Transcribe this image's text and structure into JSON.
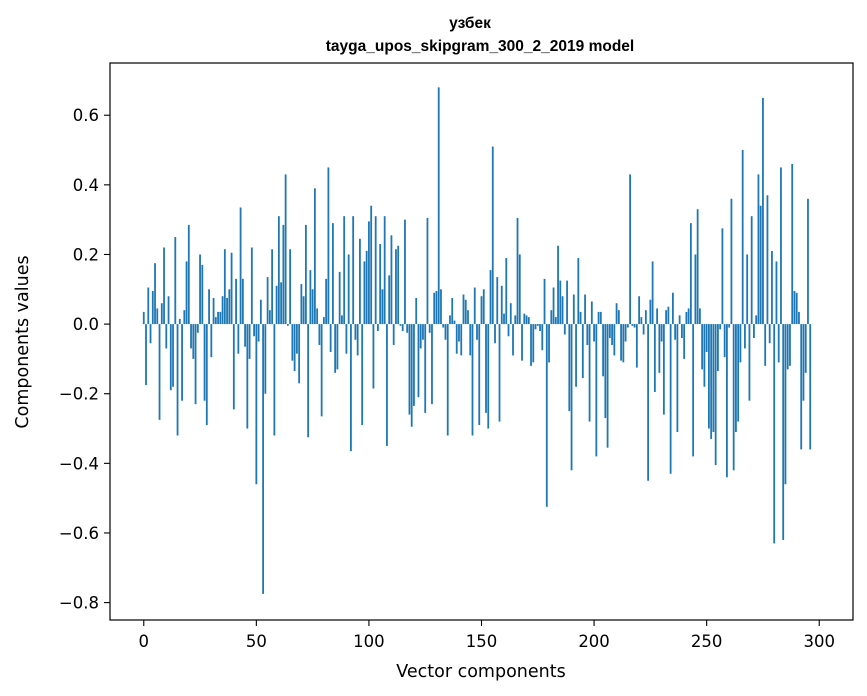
{
  "chart_data": {
    "type": "bar",
    "title": "узбек",
    "subtitle": "tayga_upos_skipgram_300_2_2019 model",
    "xlabel": "Vector components",
    "ylabel": "Components values",
    "xlim": [
      -15,
      315
    ],
    "ylim": [
      -0.85,
      0.75
    ],
    "xticks": [
      0,
      50,
      100,
      150,
      200,
      250,
      300
    ],
    "yticks": [
      -0.8,
      -0.6,
      -0.4,
      -0.2,
      0.0,
      0.2,
      0.4,
      0.6
    ],
    "ytick_labels": [
      "−0.8",
      "−0.6",
      "−0.4",
      "−0.2",
      "0.0",
      "0.2",
      "0.4",
      "0.6"
    ],
    "bar_color": "#1f77b4",
    "grid": false,
    "values": [
      0.035,
      -0.175,
      0.105,
      -0.055,
      0.095,
      0.175,
      0.045,
      -0.275,
      0.06,
      0.22,
      -0.07,
      0.08,
      -0.19,
      -0.18,
      0.25,
      -0.32,
      0.015,
      -0.22,
      0.04,
      0.18,
      0.285,
      -0.07,
      -0.1,
      -0.23,
      -0.025,
      0.2,
      0.17,
      -0.22,
      -0.29,
      0.1,
      -0.095,
      0.075,
      0.02,
      0.035,
      0.035,
      0.08,
      0.215,
      0.075,
      0.1,
      0.205,
      -0.245,
      0.13,
      -0.085,
      0.335,
      0.13,
      -0.065,
      -0.3,
      -0.1,
      0.22,
      -0.035,
      -0.46,
      -0.05,
      0.07,
      -0.775,
      -0.2,
      0.135,
      0.04,
      0.215,
      -0.32,
      0.11,
      0.31,
      0.12,
      0.285,
      0.43,
      -0.005,
      0.215,
      -0.105,
      -0.135,
      -0.085,
      -0.17,
      0.115,
      0.08,
      0.285,
      -0.325,
      0.155,
      0.1,
      0.39,
      0.045,
      -0.06,
      -0.265,
      0.02,
      0.13,
      0.45,
      -0.08,
      0.29,
      -0.14,
      -0.13,
      0.15,
      0.025,
      0.31,
      -0.085,
      0.2,
      -0.365,
      0.31,
      -0.045,
      -0.09,
      0.245,
      -0.29,
      0.18,
      0.21,
      0.295,
      0.34,
      -0.185,
      0.31,
      -0.02,
      0.23,
      0.1,
      0.31,
      -0.35,
      0.14,
      0.255,
      -0.06,
      0.215,
      0.225,
      -0.005,
      -0.02,
      0.3,
      -0.025,
      -0.26,
      -0.295,
      -0.235,
      0.075,
      -0.21,
      -0.07,
      -0.045,
      -0.255,
      0.305,
      -0.025,
      -0.23,
      0.09,
      0.095,
      0.68,
      0.1,
      -0.01,
      -0.045,
      -0.32,
      0.025,
      0.075,
      0.01,
      -0.085,
      -0.05,
      -0.09,
      0.085,
      0.07,
      0.04,
      -0.09,
      -0.32,
      0.105,
      -0.045,
      -0.29,
      0.08,
      0.1,
      -0.255,
      -0.3,
      0.155,
      0.51,
      -0.055,
      0.135,
      -0.28,
      0.11,
      0.03,
      0.19,
      -0.035,
      0.06,
      -0.09,
      0.025,
      0.305,
      0.2,
      -0.105,
      0.03,
      0.025,
      0.02,
      -0.12,
      -0.11,
      -0.015,
      -0.005,
      -0.02,
      -0.075,
      0.13,
      -0.525,
      -0.11,
      0.04,
      0.105,
      0.02,
      0.225,
      0.125,
      0.08,
      -0.03,
      0.125,
      -0.25,
      -0.42,
      0.085,
      -0.18,
      0.19,
      0.035,
      -0.155,
      0.085,
      -0.06,
      -0.28,
      0.065,
      -0.05,
      -0.38,
      0.035,
      0.035,
      -0.15,
      -0.27,
      -0.355,
      -0.04,
      -0.06,
      -0.09,
      0.06,
      0.04,
      -0.105,
      -0.11,
      -0.05,
      -0.01,
      0.43,
      -0.005,
      -0.01,
      -0.125,
      0.08,
      0.02,
      -0.03,
      0.04,
      -0.45,
      0.07,
      0.18,
      -0.195,
      0.045,
      -0.14,
      -0.05,
      -0.26,
      0.04,
      0.05,
      -0.43,
      0.09,
      -0.045,
      -0.31,
      0.025,
      -0.04,
      -0.1,
      0.035,
      0.045,
      0.29,
      -0.38,
      0.2,
      0.33,
      0.045,
      -0.13,
      -0.18,
      -0.08,
      -0.3,
      -0.33,
      -0.31,
      -0.405,
      -0.135,
      -0.015,
      0.275,
      -0.095,
      -0.44,
      -0.01,
      0.36,
      -0.42,
      -0.31,
      -0.28,
      -0.11,
      0.5,
      -0.07,
      0.2,
      -0.22,
      0.31,
      -0.04,
      0.025,
      0.43,
      0.34,
      0.65,
      -0.12,
      0.37,
      -0.055,
      0.21,
      -0.63,
      0.18,
      -0.11,
      0.45,
      -0.62,
      -0.46,
      -0.13,
      -0.12,
      0.46,
      0.095,
      0.09,
      0.035,
      -0.36,
      -0.22,
      -0.14,
      0.36,
      -0.36
    ]
  }
}
